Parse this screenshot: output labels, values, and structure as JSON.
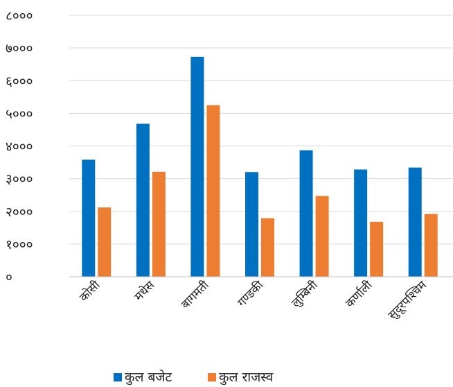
{
  "chart_data": {
    "type": "bar",
    "categories": [
      "कोसी",
      "मधेस",
      "बागमती",
      "गण्डकी",
      "लुम्बिनी",
      "कर्णाली",
      "सुदूरपश्चिम"
    ],
    "series": [
      {
        "name": "कुल बजेट",
        "color": "#0070C0",
        "values": [
          3580,
          4680,
          6730,
          3200,
          3870,
          3280,
          3340
        ]
      },
      {
        "name": "कुल राजस्व",
        "color": "#ED7D31",
        "values": [
          2120,
          3210,
          5250,
          1790,
          2470,
          1680,
          1920
        ]
      }
    ],
    "yticks": [
      "०",
      "१०००",
      "२०००",
      "३०००",
      "४०००",
      "५०००",
      "६०००",
      "७०००",
      "८०००"
    ],
    "ylim": [
      0,
      8000
    ],
    "grid": true,
    "legend_position": "bottom"
  }
}
